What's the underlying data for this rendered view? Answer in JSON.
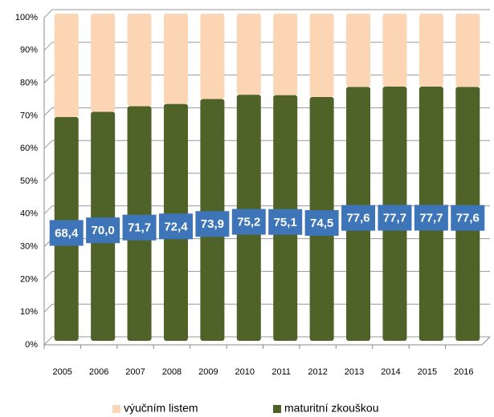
{
  "chart_data": {
    "type": "bar",
    "stacked": true,
    "categories": [
      "2005",
      "2006",
      "2007",
      "2008",
      "2009",
      "2010",
      "2011",
      "2012",
      "2013",
      "2014",
      "2015",
      "2016"
    ],
    "series": [
      {
        "name": "maturitní zkouškou",
        "color": "#4f6228",
        "values": [
          68.4,
          70.0,
          71.7,
          72.4,
          73.9,
          75.2,
          75.1,
          74.5,
          77.6,
          77.7,
          77.7,
          77.6
        ],
        "value_labels": [
          "68,4",
          "70,0",
          "71,7",
          "72,4",
          "73,9",
          "75,2",
          "75,1",
          "74,5",
          "77,6",
          "77,7",
          "77,7",
          "77,6"
        ]
      },
      {
        "name": "výučním listem",
        "color": "#fcd5b5",
        "values": [
          31.6,
          30.0,
          28.3,
          27.6,
          26.1,
          24.8,
          24.9,
          25.5,
          22.4,
          22.3,
          22.3,
          22.4
        ]
      }
    ],
    "ylim": [
      0,
      100
    ],
    "yticks": [
      {
        "value": 0,
        "label": "0%"
      },
      {
        "value": 10,
        "label": "10%"
      },
      {
        "value": 20,
        "label": "20%"
      },
      {
        "value": 30,
        "label": "30%"
      },
      {
        "value": 40,
        "label": "40%"
      },
      {
        "value": 50,
        "label": "50%"
      },
      {
        "value": 60,
        "label": "60%"
      },
      {
        "value": 70,
        "label": "70%"
      },
      {
        "value": 80,
        "label": "80%"
      },
      {
        "value": 90,
        "label": "90%"
      },
      {
        "value": 100,
        "label": "100%"
      }
    ],
    "grid": true,
    "legend": "bottom",
    "label_color": "#3e75b8"
  }
}
